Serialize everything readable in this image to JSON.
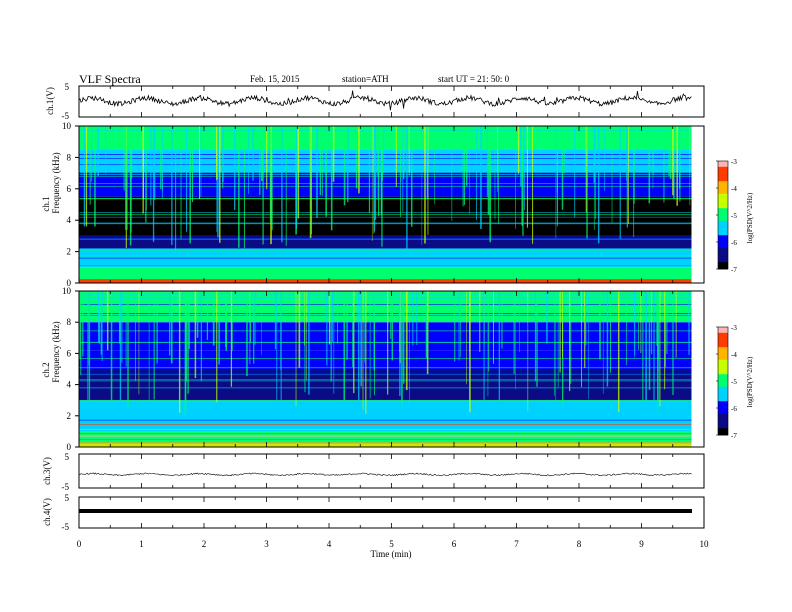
{
  "header": {
    "title": "VLF  Spectra",
    "date": "Feb. 15, 2015",
    "station": "station=ATH",
    "start": "start  UT  =   21: 50: 0"
  },
  "colors": {
    "scale": [
      "#000000",
      "#0b0b86",
      "#0000ff",
      "#00d2ff",
      "#00ff6e",
      "#c8ff00",
      "#ffb400",
      "#ff3c00",
      "#ffb4b4"
    ],
    "trace": "#000000"
  },
  "chart_data": [
    {
      "type": "line",
      "panel": "ch1_waveform",
      "ylabel": "ch.1(V)",
      "ylim": [
        -5,
        5
      ],
      "ytick_labels": [
        "5",
        "-5"
      ],
      "note_level_v": 0.2,
      "xlim": [
        0,
        10
      ]
    },
    {
      "type": "heatmap",
      "panel": "ch1_spectrogram",
      "ylabel_top": "ch.1",
      "ylabel": "Frequency  (kHz)",
      "ylim": [
        0,
        10
      ],
      "ytick_labels": [
        "0",
        "2",
        "4",
        "6",
        "8",
        "10"
      ],
      "xlim": [
        0,
        10
      ],
      "data_extent_min": [
        0,
        9.8
      ],
      "colorbar": {
        "label": "log(PSD(V^2/Hz)",
        "range": [
          -7,
          -3
        ],
        "tick_labels": [
          "-3",
          "-4",
          "-5",
          "-6",
          "-7"
        ]
      },
      "bands": [
        {
          "f": [
            0.0,
            0.25
          ],
          "level": -3.6
        },
        {
          "f": [
            0.25,
            1.0
          ],
          "level": -4.8
        },
        {
          "f": [
            1.0,
            2.2
          ],
          "level": -5.6
        },
        {
          "f": [
            2.2,
            3.0
          ],
          "level": -6.3
        },
        {
          "f": [
            3.0,
            5.5
          ],
          "level": -6.9
        },
        {
          "f": [
            5.5,
            7.0
          ],
          "level": -6.2
        },
        {
          "f": [
            7.0,
            8.5
          ],
          "level": -5.6
        },
        {
          "f": [
            8.5,
            10.0
          ],
          "level": -5.0
        }
      ]
    },
    {
      "type": "heatmap",
      "panel": "ch2_spectrogram",
      "ylabel_top": "ch.2",
      "ylabel": "Frequency  (kHz)",
      "ylim": [
        0,
        10
      ],
      "ytick_labels": [
        "0",
        "2",
        "4",
        "6",
        "8",
        "10"
      ],
      "xlim": [
        0,
        10
      ],
      "data_extent_min": [
        0,
        9.8
      ],
      "colorbar": {
        "label": "log(PSD(V^2/Hz)",
        "range": [
          -7,
          -3
        ],
        "tick_labels": [
          "-3",
          "-4",
          "-5",
          "-6",
          "-7"
        ]
      },
      "bands": [
        {
          "f": [
            0.0,
            0.3
          ],
          "level": -4.4
        },
        {
          "f": [
            0.3,
            1.0
          ],
          "level": -4.9
        },
        {
          "f": [
            1.0,
            3.0
          ],
          "level": -5.5
        },
        {
          "f": [
            3.0,
            5.0
          ],
          "level": -6.6
        },
        {
          "f": [
            5.0,
            6.2
          ],
          "level": -6.2
        },
        {
          "f": [
            6.2,
            8.0
          ],
          "level": -5.8
        },
        {
          "f": [
            8.0,
            10.0
          ],
          "level": -5.1
        }
      ]
    },
    {
      "type": "line",
      "panel": "ch3_waveform",
      "ylabel": "ch.3(V)",
      "ylim": [
        -5,
        5
      ],
      "ytick_labels": [
        "5",
        "-5"
      ],
      "note_level_v": -1.0,
      "xlim": [
        0,
        10
      ]
    },
    {
      "type": "line",
      "panel": "ch4_waveform",
      "ylabel": "ch.4(V)",
      "ylim": [
        -5,
        5
      ],
      "ytick_labels": [
        "5",
        "-5"
      ],
      "note_level_v": -1.0,
      "xlim": [
        0,
        10
      ]
    }
  ],
  "xaxis": {
    "label": "Time  (min)",
    "tick_labels": [
      "0",
      "1",
      "2",
      "3",
      "4",
      "5",
      "6",
      "7",
      "8",
      "9",
      "10"
    ]
  }
}
